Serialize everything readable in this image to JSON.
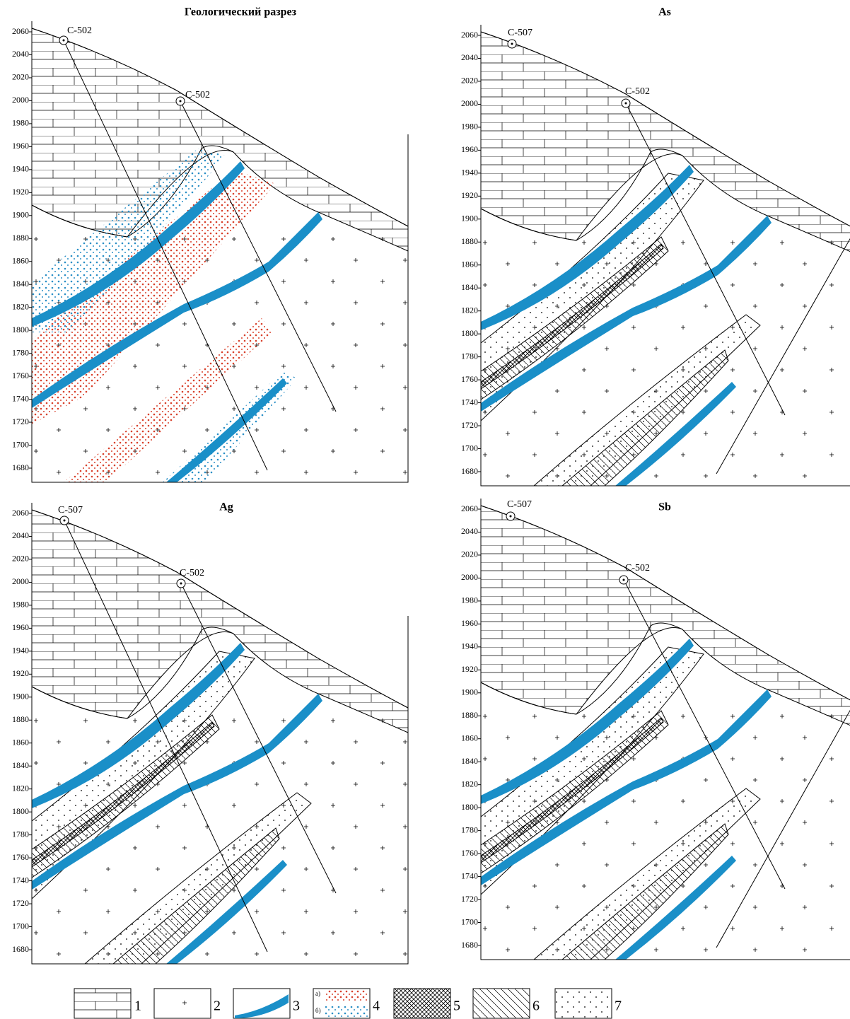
{
  "panels": [
    {
      "title": "Геологический разрез",
      "yticks": [
        2060,
        2040,
        2020,
        2000,
        1980,
        1960,
        1940,
        1920,
        1900,
        1880,
        1860,
        1840,
        1820,
        1800,
        1780,
        1760,
        1740,
        1720,
        1700,
        1680
      ],
      "wells": [
        "С-502",
        "С-502"
      ]
    },
    {
      "title": "As",
      "yticks": [
        2060,
        2040,
        2020,
        2000,
        1980,
        1960,
        1940,
        1920,
        1900,
        1880,
        1860,
        1840,
        1820,
        1800,
        1780,
        1760,
        1740,
        1720,
        1700,
        1680
      ],
      "wells": [
        "С-507",
        "С-502"
      ]
    },
    {
      "title": "Ag",
      "yticks": [
        2060,
        2040,
        2020,
        2000,
        1980,
        1960,
        1940,
        1920,
        1900,
        1880,
        1860,
        1840,
        1820,
        1800,
        1780,
        1760,
        1740,
        1720,
        1700,
        1680
      ],
      "wells": [
        "С-507",
        "С-502"
      ]
    },
    {
      "title": "Sb",
      "yticks": [
        2060,
        2040,
        2020,
        2000,
        1980,
        1960,
        1940,
        1920,
        1900,
        1880,
        1860,
        1840,
        1820,
        1800,
        1780,
        1760,
        1740,
        1720,
        1700,
        1680
      ],
      "wells": [
        "С-507",
        "С-502"
      ]
    }
  ],
  "legend": {
    "items": [
      "1",
      "2",
      "3",
      "4",
      "5",
      "6",
      "7"
    ],
    "sub": [
      "а)",
      "б)"
    ]
  }
}
